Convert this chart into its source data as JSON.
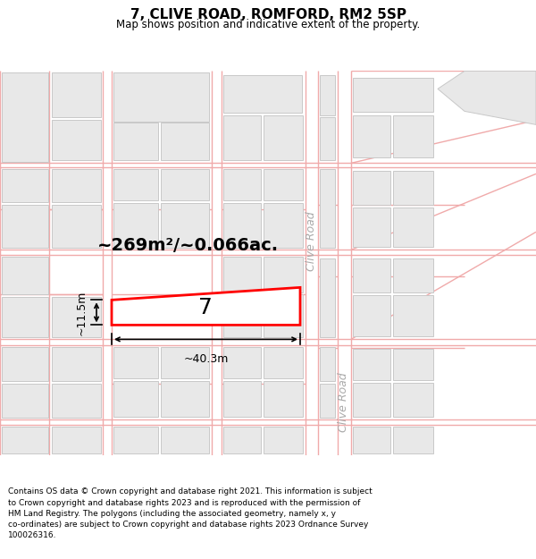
{
  "title": "7, CLIVE ROAD, ROMFORD, RM2 5SP",
  "subtitle": "Map shows position and indicative extent of the property.",
  "footer": "Contains OS data © Crown copyright and database right 2021. This information is subject\nto Crown copyright and database rights 2023 and is reproduced with the permission of\nHM Land Registry. The polygons (including the associated geometry, namely x, y\nco-ordinates) are subject to Crown copyright and database rights 2023 Ordnance Survey\n100026316.",
  "area_label": "~269m²/~0.066ac.",
  "width_label": "~40.3m",
  "height_label": "~11.5m",
  "property_number": "7",
  "bg_color": "#ffffff",
  "map_bg": "#ffffff",
  "road_line_color": "#f0aaaa",
  "building_fill": "#e8e8e8",
  "building_edge": "#c8c8c8",
  "highlight_color": "#ff0000",
  "text_color": "#000000",
  "road_label_color": "#aaaaaa",
  "road_label": "Clive Road",
  "title_fontsize": 11,
  "subtitle_fontsize": 8.5,
  "footer_fontsize": 6.5,
  "area_fontsize": 14,
  "dim_fontsize": 9,
  "prop_num_fontsize": 18,
  "road_label_fontsize": 9
}
